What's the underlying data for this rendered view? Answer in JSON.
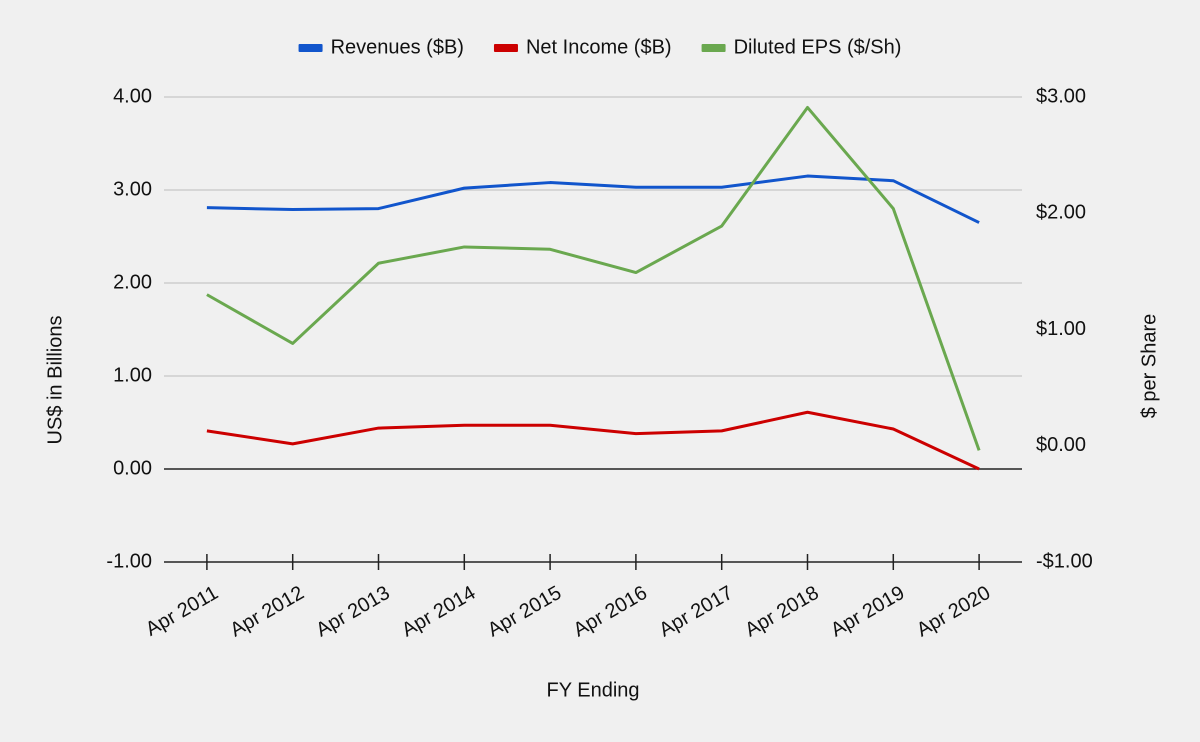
{
  "chart_data": {
    "type": "line",
    "categories": [
      "Apr 2011",
      "Apr 2012",
      "Apr 2013",
      "Apr 2014",
      "Apr 2015",
      "Apr 2016",
      "Apr 2017",
      "Apr 2018",
      "Apr 2019",
      "Apr 2020"
    ],
    "series": [
      {
        "name": "Revenues ($B)",
        "color": "#1155cc",
        "values": [
          2.81,
          2.79,
          2.8,
          3.02,
          3.08,
          3.03,
          3.03,
          3.15,
          3.1,
          2.65
        ]
      },
      {
        "name": "Net Income ($B)",
        "color": "#cc0000",
        "values": [
          0.41,
          0.27,
          0.44,
          0.47,
          0.47,
          0.38,
          0.41,
          0.61,
          0.43,
          0.0
        ]
      },
      {
        "name": "Diluted EPS ($/Sh)",
        "color": "#6aa84f",
        "axis": "y2",
        "values": [
          1.3,
          0.88,
          1.57,
          1.71,
          1.69,
          1.49,
          1.89,
          2.91,
          2.04,
          -0.04
        ]
      }
    ],
    "ylabel": "US$ in Billions",
    "y2label": "$ per Share",
    "xlabel": "FY Ending",
    "ylim": [
      -1,
      4
    ],
    "yticks": [
      {
        "value": -1,
        "label": "-1.00"
      },
      {
        "value": 0,
        "label": "0.00"
      },
      {
        "value": 1,
        "label": "1.00"
      },
      {
        "value": 2,
        "label": "2.00"
      },
      {
        "value": 3,
        "label": "3.00"
      },
      {
        "value": 4,
        "label": "4.00"
      }
    ],
    "y2lim": [
      -1,
      3
    ],
    "y2ticks": [
      {
        "value": -1,
        "label": "-$1.00"
      },
      {
        "value": 0,
        "label": "$0.00"
      },
      {
        "value": 1,
        "label": "$1.00"
      },
      {
        "value": 2,
        "label": "$2.00"
      },
      {
        "value": 3,
        "label": "$3.00"
      }
    ],
    "grid": true,
    "legend": "top"
  }
}
